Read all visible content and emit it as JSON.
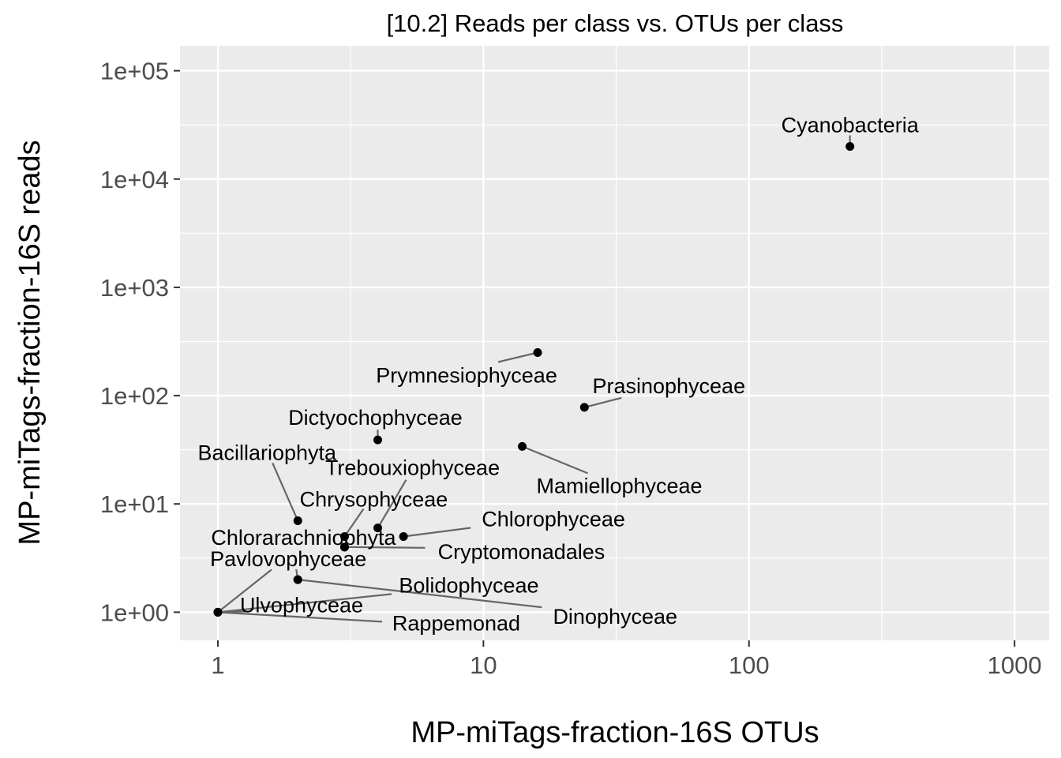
{
  "chart_data": {
    "type": "scatter",
    "title": "[10.2] Reads per class vs. OTUs per class",
    "xlabel": "MP-miTags-fraction-16S OTUs",
    "ylabel": "MP-miTags-fraction-16S reads",
    "x_scale": "log10",
    "y_scale": "log10",
    "xlim": [
      0.72,
      1350
    ],
    "ylim": [
      0.55,
      170000
    ],
    "x_ticks": [
      1,
      10,
      100,
      1000
    ],
    "x_tick_labels": [
      "1",
      "10",
      "100",
      "1000"
    ],
    "y_ticks": [
      1,
      10,
      100,
      1000,
      10000,
      100000
    ],
    "y_tick_labels": [
      "1e+00",
      "1e+01",
      "1e+02",
      "1e+03",
      "1e+04",
      "1e+05"
    ],
    "grid": true,
    "colors": {
      "panel": "#ebebeb",
      "grid": "#ffffff",
      "point": "#000000",
      "segment": "#666666"
    },
    "points": [
      {
        "label": "Cyanobacteria",
        "x": 240,
        "y": 20000
      },
      {
        "label": "Prymnesiophyceae",
        "x": 16,
        "y": 250
      },
      {
        "label": "Prasinophyceae",
        "x": 24,
        "y": 78
      },
      {
        "label": "Dictyochophyceae",
        "x": 4,
        "y": 39
      },
      {
        "label": "Mamiellophyceae",
        "x": 14,
        "y": 34
      },
      {
        "label": "Bacillariophyta",
        "x": 2,
        "y": 7
      },
      {
        "label": "Trebouxiophyceae",
        "x": 4,
        "y": 6
      },
      {
        "label": "Chrysophyceae",
        "x": 3,
        "y": 5
      },
      {
        "label": "Chlorophyceae",
        "x": 5,
        "y": 5
      },
      {
        "label": "Chlorarachniophyta",
        "x": 3,
        "y": 4
      },
      {
        "label": "Cryptomonadales",
        "x": 3,
        "y": 4
      },
      {
        "label": "Pavlovophyceae",
        "x": 2,
        "y": 2
      },
      {
        "label": "Dinophyceae",
        "x": 2,
        "y": 2
      },
      {
        "label": "Bolidophyceae",
        "x": 1,
        "y": 1
      },
      {
        "label": "Ulvophyceae",
        "x": 1,
        "y": 1
      },
      {
        "label": "Rappemonad",
        "x": 1,
        "y": 1
      }
    ]
  }
}
